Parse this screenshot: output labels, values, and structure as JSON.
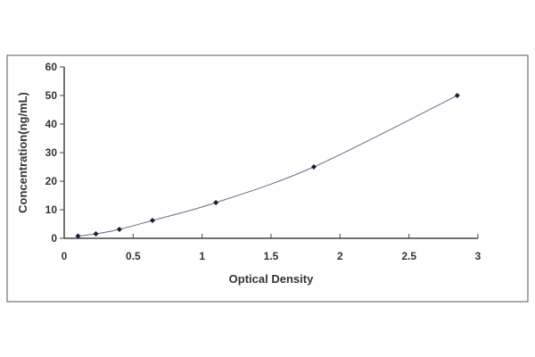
{
  "chart_data": {
    "type": "scatter",
    "title": "",
    "xlabel": "Optical Density",
    "ylabel": "Concentration(ng/mL)",
    "xlim": [
      0,
      3
    ],
    "ylim": [
      0,
      60
    ],
    "xticks": [
      "0",
      "0.5",
      "1",
      "1.5",
      "2",
      "2.5",
      "3"
    ],
    "yticks": [
      "0",
      "10",
      "20",
      "30",
      "40",
      "50",
      "60"
    ],
    "grid": false,
    "trendline": "smooth curve through points",
    "x": [
      0.1,
      0.23,
      0.4,
      0.64,
      1.1,
      1.81,
      2.85
    ],
    "y": [
      0.78,
      1.56,
      3.12,
      6.25,
      12.5,
      25,
      50
    ],
    "colors": {
      "marker": "#1a1a3a",
      "line": "#6a6a8a",
      "axis": "#444444"
    }
  }
}
